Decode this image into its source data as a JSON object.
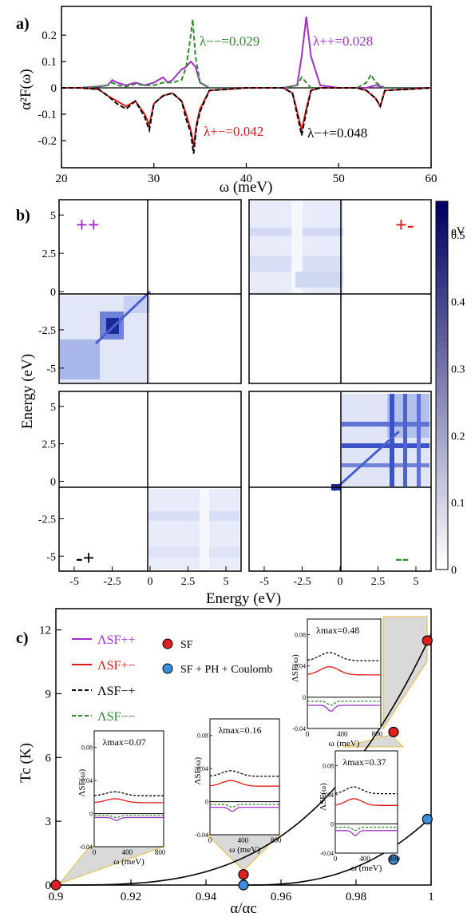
{
  "panel_a": {
    "label": "a)",
    "ylabel": "α²F(ω)",
    "xlabel": "ω (meV)",
    "xticks": [
      20,
      30,
      40,
      50,
      60
    ],
    "yticks": [
      0.2,
      0.1,
      0,
      -0.1,
      -0.2
    ],
    "annotations": [
      {
        "text": "λ−−=0.029",
        "color": "#2e8b2e"
      },
      {
        "text": "λ++=0.028",
        "color": "#a030c8"
      },
      {
        "text": "λ+−=0.042",
        "color": "#e01818"
      },
      {
        "text": "λ−+=0.048",
        "color": "#000000"
      }
    ]
  },
  "panel_b": {
    "label": "b)",
    "ylabel": "Energy (eV)",
    "xlabel": "Energy (eV)",
    "ticks": [
      "-5",
      "-2.5",
      "0",
      "2.5",
      "5"
    ],
    "quadrant_labels": [
      {
        "text": "++",
        "color": "#a030c8"
      },
      {
        "text": "+-",
        "color": "#e01818"
      },
      {
        "text": "-+",
        "color": "#000000"
      },
      {
        "text": "--",
        "color": "#2e8b2e"
      }
    ],
    "colorbar": {
      "unit": "eV",
      "ticks": [
        "0.5",
        "0.4",
        "0.3",
        "0.2",
        "0.1",
        "0"
      ],
      "min": 0,
      "max": 0.55
    }
  },
  "panel_c": {
    "label": "c)",
    "ylabel": "Tc (K)",
    "xlabel": "α/αc",
    "xticks": [
      "0.9",
      "0.92",
      "0.94",
      "0.96",
      "0.98",
      "1"
    ],
    "yticks": [
      "0",
      "3",
      "6",
      "9",
      "12"
    ],
    "legend": [
      {
        "text": "ΛSF++",
        "color": "#a030c8"
      },
      {
        "text": "ΛSF+−",
        "color": "#e01818"
      },
      {
        "text": "ΛSF−+",
        "color": "#000000"
      },
      {
        "text": "ΛSF−−",
        "color": "#2e8b2e"
      }
    ],
    "marker_legend": [
      {
        "text": "SF",
        "color": "#e02020"
      },
      {
        "text": "SF + PH + Coulomb",
        "color": "#3a8ee0"
      }
    ],
    "insets": [
      {
        "lambda": "λmax=0.07"
      },
      {
        "lambda": "λmax=0.16"
      },
      {
        "lambda": "λmax=0.48"
      },
      {
        "lambda": "λmax=0.37"
      }
    ],
    "inset_ylabel": "ΛSF(ω)",
    "inset_xlabel": "ω (meV)",
    "inset_yticks": [
      "0.08",
      "0.04",
      "0",
      "-0.04"
    ],
    "inset_xticks": [
      "0",
      "400",
      "800"
    ]
  },
  "chart_data": [
    {
      "type": "line",
      "title": "",
      "xlabel": "ω (meV)",
      "ylabel": "α²F(ω)",
      "xlim": [
        20,
        60
      ],
      "ylim": [
        -0.25,
        0.3
      ],
      "series": [
        {
          "name": "λ++=0.028",
          "color": "#a030c8",
          "dash": false,
          "x": [
            20,
            22,
            24,
            25,
            25.5,
            26,
            27,
            28,
            29,
            30,
            31,
            31.5,
            32,
            33,
            33.5,
            34,
            34.5,
            35,
            36,
            40,
            44,
            45.5,
            46,
            46.5,
            47,
            48,
            50,
            52,
            53,
            54,
            55,
            60
          ],
          "y": [
            0,
            0,
            0.005,
            0.01,
            0.03,
            0.02,
            0.01,
            0.02,
            0.01,
            0.02,
            0.04,
            0.02,
            0.03,
            0.07,
            0.08,
            0.1,
            0.08,
            0.02,
            0,
            0,
            0,
            0.01,
            0.12,
            0.27,
            0.12,
            0.01,
            0,
            0,
            0,
            0.01,
            0,
            0
          ]
        },
        {
          "name": "λ−−=0.029",
          "color": "#2e8b2e",
          "dash": true,
          "x": [
            20,
            22,
            24,
            25,
            25.5,
            26,
            27,
            28,
            29,
            30,
            31,
            32,
            33,
            33.5,
            34,
            34.2,
            34.5,
            35,
            36,
            40,
            44,
            45.5,
            46,
            46.5,
            47,
            48,
            50,
            52,
            53,
            53.5,
            54,
            55,
            60
          ],
          "y": [
            0,
            0,
            0.005,
            0.01,
            0.02,
            0.01,
            0.005,
            0.015,
            0.01,
            0.01,
            0.02,
            0.02,
            0.03,
            0.08,
            0.2,
            0.26,
            0.12,
            0.02,
            0,
            0,
            0,
            0.01,
            0.04,
            0.02,
            0,
            0,
            0,
            0,
            0.02,
            0.05,
            0.02,
            0,
            0
          ]
        },
        {
          "name": "λ+−=0.042",
          "color": "#e01818",
          "dash": false,
          "x": [
            20,
            22,
            24,
            25,
            26,
            27,
            28,
            29,
            29.5,
            30,
            31,
            32,
            33,
            33.5,
            34,
            34.3,
            34.6,
            35,
            36,
            40,
            44,
            45,
            45.5,
            46,
            46.5,
            47,
            48,
            50,
            52,
            53,
            54,
            54.5,
            55,
            60
          ],
          "y": [
            0,
            0,
            -0.005,
            -0.03,
            -0.05,
            -0.07,
            -0.05,
            -0.1,
            -0.14,
            -0.06,
            -0.03,
            -0.02,
            -0.05,
            -0.1,
            -0.16,
            -0.22,
            -0.14,
            -0.08,
            -0.01,
            0,
            0,
            -0.02,
            -0.09,
            -0.16,
            -0.08,
            -0.01,
            0,
            0,
            0,
            -0.01,
            -0.04,
            -0.07,
            -0.01,
            0
          ]
        },
        {
          "name": "λ−+=0.048",
          "color": "#000000",
          "dash": true,
          "x": [
            20,
            22,
            24,
            25,
            26,
            27,
            28,
            29,
            29.5,
            30,
            31,
            32,
            33,
            33.5,
            34,
            34.3,
            34.6,
            35,
            36,
            40,
            44,
            45,
            45.5,
            46,
            46.5,
            47,
            48,
            50,
            52,
            53,
            54,
            54.5,
            55,
            60
          ],
          "y": [
            0,
            0,
            -0.005,
            -0.03,
            -0.06,
            -0.08,
            -0.05,
            -0.11,
            -0.16,
            -0.06,
            -0.03,
            -0.02,
            -0.05,
            -0.12,
            -0.17,
            -0.25,
            -0.15,
            -0.09,
            -0.01,
            0,
            0,
            -0.02,
            -0.1,
            -0.18,
            -0.09,
            -0.01,
            0,
            0,
            0,
            -0.01,
            -0.04,
            -0.07,
            -0.01,
            0
          ]
        }
      ]
    },
    {
      "type": "heatmap",
      "title": "",
      "xlabel": "Energy (eV)",
      "ylabel": "Energy (eV)",
      "xlim": [
        -6,
        6
      ],
      "ylim": [
        -6,
        6
      ],
      "colorbar_range": [
        0,
        0.55
      ],
      "panels": [
        "++",
        "+-",
        "-+",
        "--"
      ]
    },
    {
      "type": "scatter",
      "title": "",
      "xlabel": "α/αc",
      "ylabel": "Tc (K)",
      "xlim": [
        0.9,
        1.0
      ],
      "ylim": [
        0,
        13
      ],
      "series": [
        {
          "name": "SF",
          "color": "#e02020",
          "x": [
            0.9,
            0.95,
            0.99,
            0.999
          ],
          "y": [
            0,
            0.5,
            7.2,
            11.5
          ]
        },
        {
          "name": "SF + PH + Coulomb",
          "color": "#3a8ee0",
          "x": [
            0.95,
            0.99,
            0.999
          ],
          "y": [
            0,
            1.2,
            3.1
          ]
        }
      ]
    }
  ]
}
